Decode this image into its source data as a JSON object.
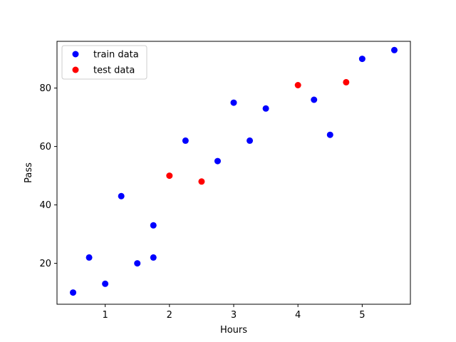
{
  "chart_data": {
    "type": "scatter",
    "title": "",
    "xlabel": "Hours",
    "ylabel": "Pass",
    "xlim": [
      0.25,
      5.75
    ],
    "ylim": [
      6,
      96
    ],
    "xticks": [
      1,
      2,
      3,
      4,
      5
    ],
    "yticks": [
      20,
      40,
      60,
      80
    ],
    "grid": false,
    "legend_position": "upper left",
    "series": [
      {
        "name": "train data",
        "color": "#0000ff",
        "x": [
          0.5,
          0.75,
          1.0,
          1.25,
          1.5,
          1.75,
          1.75,
          2.25,
          2.75,
          3.0,
          3.25,
          3.5,
          4.25,
          4.5,
          5.0,
          5.5
        ],
        "y": [
          10,
          22,
          13,
          43,
          20,
          22,
          33,
          62,
          55,
          75,
          62,
          73,
          76,
          64,
          90,
          93
        ]
      },
      {
        "name": "test data",
        "color": "#ff0000",
        "x": [
          2.0,
          2.5,
          4.0,
          4.75
        ],
        "y": [
          50,
          48,
          81,
          82
        ]
      }
    ]
  }
}
